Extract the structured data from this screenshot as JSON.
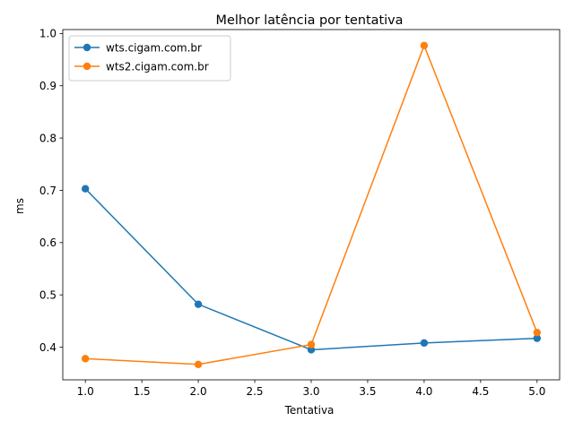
{
  "chart_data": {
    "type": "line",
    "title": "Melhor latência por tentativa",
    "xlabel": "Tentativa",
    "ylabel": "ms",
    "xlim": [
      0.8,
      5.2
    ],
    "ylim": [
      0.3375,
      1.0075
    ],
    "x_ticks": [
      1.0,
      1.5,
      2.0,
      2.5,
      3.0,
      3.5,
      4.0,
      4.5,
      5.0
    ],
    "x_tick_labels": [
      "1.0",
      "1.5",
      "2.0",
      "2.5",
      "3.0",
      "3.5",
      "4.0",
      "4.5",
      "5.0"
    ],
    "y_ticks": [
      0.4,
      0.5,
      0.6,
      0.7,
      0.8,
      0.9,
      1.0
    ],
    "y_tick_labels": [
      "0.4",
      "0.5",
      "0.6",
      "0.7",
      "0.8",
      "0.9",
      "1.0"
    ],
    "grid": false,
    "legend_position": "upper-left",
    "x": [
      1,
      2,
      3,
      4,
      5
    ],
    "series": [
      {
        "name": "wts.cigam.com.br",
        "color": "#1f77b4",
        "values": [
          0.703,
          0.482,
          0.395,
          0.408,
          0.417
        ]
      },
      {
        "name": "wts2.cigam.com.br",
        "color": "#ff7f0e",
        "values": [
          0.378,
          0.367,
          0.405,
          0.977,
          0.428
        ]
      }
    ]
  }
}
